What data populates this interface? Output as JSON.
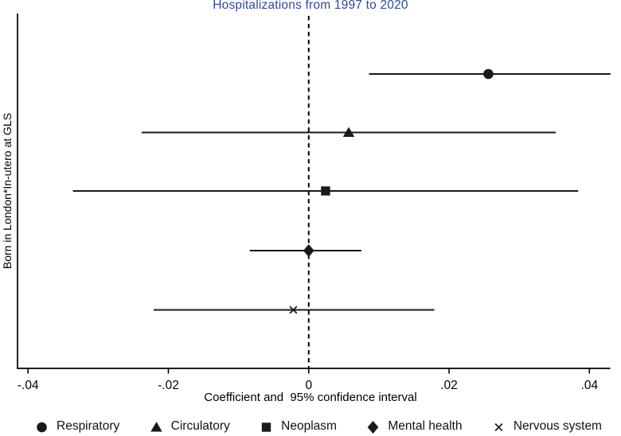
{
  "page": {
    "background": "#ffffff"
  },
  "colors": {
    "title": "#2e4a9c",
    "axis": "#000000",
    "ci_line": "#1a1a1a",
    "marker": "#1a1a1a",
    "zero_line": "#000000"
  },
  "chart_data": {
    "type": "scatter",
    "subtype": "forest-coefficient-plot",
    "title": "Hospitalizations from 1997 to 2020",
    "xlabel": "Coefficient and  95% confidence interval",
    "ylabel": "Born in London*In-utero at GLS",
    "xlim": [
      -0.0415,
      0.0428
    ],
    "xticks": [
      {
        "value": -0.04,
        "label": "-.04"
      },
      {
        "value": -0.02,
        "label": "-.02"
      },
      {
        "value": 0,
        "label": "0"
      },
      {
        "value": 0.02,
        "label": ".02"
      },
      {
        "value": 0.04,
        "label": ".04"
      }
    ],
    "zero_line": {
      "x": 0,
      "style": "dashed"
    },
    "grid": false,
    "legend_position": "bottom",
    "series": [
      {
        "name": "Respiratory",
        "marker": "circle",
        "estimate": 0.0256,
        "ci_low": 0.0086,
        "ci_high": 0.043
      },
      {
        "name": "Circulatory",
        "marker": "triangle",
        "estimate": 0.0057,
        "ci_low": -0.0238,
        "ci_high": 0.0352
      },
      {
        "name": "Neoplasm",
        "marker": "square",
        "estimate": 0.0024,
        "ci_low": -0.0336,
        "ci_high": 0.0384
      },
      {
        "name": "Mental health",
        "marker": "diamond",
        "estimate": 0.0,
        "ci_low": -0.0084,
        "ci_high": 0.0075
      },
      {
        "name": "Nervous system",
        "marker": "x",
        "estimate": -0.0022,
        "ci_low": -0.0221,
        "ci_high": 0.0179
      }
    ]
  }
}
